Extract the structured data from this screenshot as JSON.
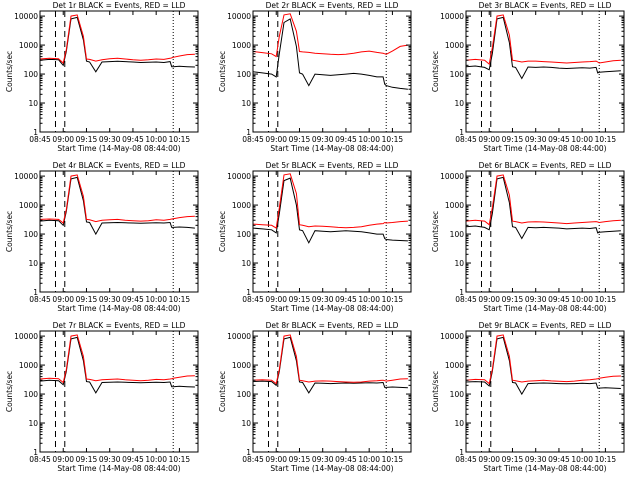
{
  "chart_data": [
    {
      "title": "Det 1r BLACK = Events, RED = LLD",
      "type": "line"
    },
    {
      "title": "Det 2r BLACK = Events, RED = LLD",
      "type": "line"
    },
    {
      "title": "Det 3r BLACK = Events, RED = LLD",
      "type": "line"
    },
    {
      "title": "Det 4r BLACK = Events, RED = LLD",
      "type": "line"
    },
    {
      "title": "Det 5r BLACK = Events, RED = LLD",
      "type": "line"
    },
    {
      "title": "Det 6r BLACK = Events, RED = LLD",
      "type": "line"
    },
    {
      "title": "Det 7r BLACK = Events, RED = LLD",
      "type": "line"
    },
    {
      "title": "Det 8r BLACK = Events, RED = LLD",
      "type": "line"
    },
    {
      "title": "Det 9r BLACK = Events, RED = LLD",
      "type": "line"
    }
  ],
  "shared_axes": {
    "x_ticks": [
      "08:45",
      "09:00",
      "09:15",
      "09:30",
      "09:45",
      "10:00",
      "10:15"
    ],
    "x_tick_values_min": [
      0,
      15,
      30,
      45,
      60,
      75,
      90
    ],
    "xlim_min": [
      0,
      102
    ],
    "xlabel": "Start Time (14-May-08 08:44:00)",
    "ylabel": "Counts/sec",
    "y_scale": "log",
    "ylim": [
      1,
      15000
    ],
    "y_ticks": [
      "1",
      "10",
      "100",
      "1000",
      "10000"
    ],
    "y_tick_values": [
      1,
      10,
      100,
      1000,
      10000
    ]
  },
  "series_colors": {
    "events": "#000000",
    "lld": "#ff0000"
  },
  "series_points_x_min": [
    0,
    6,
    12,
    15,
    17,
    20,
    24,
    28,
    30,
    32,
    36,
    40,
    45,
    50,
    55,
    60,
    65,
    70,
    75,
    80,
    84,
    85,
    86,
    90,
    95,
    100
  ],
  "detectors": [
    {
      "events": [
        300,
        320,
        310,
        200,
        600,
        8000,
        9000,
        1500,
        280,
        260,
        120,
        260,
        270,
        275,
        270,
        260,
        250,
        255,
        260,
        250,
        270,
        180,
        180,
        185,
        180,
        175
      ],
      "lld": [
        330,
        350,
        340,
        240,
        700,
        10000,
        11000,
        2000,
        330,
        320,
        280,
        310,
        340,
        350,
        330,
        310,
        300,
        310,
        330,
        320,
        350,
        360,
        380,
        420,
        470,
        480
      ]
    },
    {
      "events": [
        120,
        110,
        100,
        80,
        500,
        6000,
        8000,
        900,
        110,
        100,
        40,
        100,
        95,
        90,
        95,
        100,
        105,
        100,
        90,
        80,
        80,
        45,
        40,
        35,
        32,
        30
      ],
      "lld": [
        600,
        550,
        500,
        400,
        2000,
        11000,
        12000,
        3000,
        600,
        580,
        560,
        520,
        500,
        480,
        470,
        480,
        520,
        580,
        620,
        560,
        520,
        500,
        480,
        620,
        900,
        1000
      ]
    },
    {
      "events": [
        180,
        190,
        170,
        140,
        500,
        8000,
        9000,
        1200,
        180,
        170,
        70,
        175,
        170,
        175,
        170,
        160,
        155,
        160,
        165,
        160,
        170,
        110,
        115,
        120,
        125,
        130
      ],
      "lld": [
        300,
        320,
        300,
        220,
        800,
        10000,
        11000,
        2200,
        300,
        290,
        260,
        280,
        280,
        270,
        260,
        250,
        240,
        250,
        260,
        270,
        280,
        260,
        240,
        260,
        290,
        300
      ]
    },
    {
      "events": [
        280,
        300,
        290,
        200,
        600,
        8000,
        9000,
        1400,
        260,
        250,
        100,
        240,
        245,
        250,
        245,
        240,
        235,
        240,
        245,
        240,
        250,
        170,
        170,
        175,
        170,
        160
      ],
      "lld": [
        320,
        330,
        320,
        240,
        700,
        10000,
        11000,
        2000,
        320,
        310,
        270,
        300,
        310,
        320,
        300,
        290,
        280,
        290,
        310,
        300,
        320,
        330,
        340,
        370,
        400,
        410
      ]
    },
    {
      "events": [
        160,
        150,
        140,
        110,
        500,
        7000,
        8500,
        1000,
        140,
        130,
        50,
        130,
        125,
        120,
        125,
        130,
        125,
        120,
        110,
        100,
        100,
        70,
        65,
        62,
        60,
        58
      ],
      "lld": [
        220,
        210,
        200,
        160,
        800,
        11000,
        12000,
        2500,
        210,
        200,
        180,
        190,
        185,
        180,
        170,
        165,
        170,
        180,
        200,
        220,
        230,
        250,
        240,
        250,
        270,
        280
      ]
    },
    {
      "events": [
        180,
        190,
        170,
        140,
        500,
        8000,
        9000,
        1200,
        180,
        170,
        70,
        170,
        165,
        170,
        165,
        160,
        150,
        155,
        160,
        155,
        165,
        110,
        115,
        120,
        125,
        130
      ],
      "lld": [
        280,
        300,
        280,
        210,
        800,
        10000,
        11000,
        2200,
        280,
        270,
        240,
        260,
        265,
        260,
        250,
        240,
        230,
        240,
        250,
        260,
        270,
        260,
        250,
        270,
        290,
        300
      ]
    },
    {
      "events": [
        280,
        300,
        290,
        210,
        600,
        8000,
        9000,
        1400,
        270,
        260,
        110,
        250,
        255,
        260,
        255,
        250,
        245,
        250,
        255,
        250,
        260,
        180,
        180,
        185,
        180,
        175
      ],
      "lld": [
        330,
        350,
        340,
        250,
        700,
        10000,
        11000,
        2000,
        330,
        320,
        290,
        310,
        320,
        330,
        310,
        300,
        290,
        300,
        320,
        310,
        330,
        340,
        350,
        380,
        420,
        430
      ]
    },
    {
      "events": [
        270,
        280,
        270,
        200,
        600,
        8000,
        9000,
        1400,
        260,
        250,
        110,
        240,
        235,
        230,
        235,
        240,
        235,
        240,
        245,
        240,
        250,
        170,
        170,
        175,
        170,
        165
      ],
      "lld": [
        300,
        310,
        300,
        230,
        700,
        10000,
        11000,
        2000,
        300,
        290,
        260,
        280,
        285,
        280,
        270,
        260,
        255,
        260,
        280,
        290,
        300,
        290,
        280,
        300,
        330,
        340
      ]
    },
    {
      "events": [
        260,
        270,
        260,
        190,
        600,
        8000,
        9000,
        1400,
        250,
        240,
        100,
        230,
        235,
        240,
        235,
        230,
        225,
        230,
        235,
        230,
        240,
        160,
        160,
        165,
        160,
        155
      ],
      "lld": [
        300,
        320,
        310,
        230,
        700,
        10000,
        11000,
        2000,
        300,
        290,
        260,
        280,
        290,
        300,
        285,
        275,
        270,
        280,
        300,
        310,
        330,
        340,
        350,
        380,
        410,
        420
      ]
    }
  ]
}
